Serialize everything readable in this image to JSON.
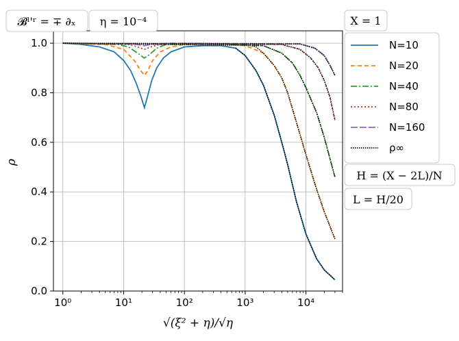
{
  "chart_data": {
    "type": "line",
    "title": "",
    "xlabel": "√(ξ² + η)/√η",
    "ylabel": "ρ",
    "xscale": "log",
    "xlim": [
      0.7,
      40000
    ],
    "ylim": [
      0.0,
      1.05
    ],
    "grid": true,
    "legend_position": "right",
    "x_ticks": [
      {
        "value": 1,
        "label": "10⁰"
      },
      {
        "value": 10,
        "label": "10¹"
      },
      {
        "value": 100,
        "label": "10²"
      },
      {
        "value": 1000,
        "label": "10³"
      },
      {
        "value": 10000,
        "label": "10⁴"
      }
    ],
    "y_ticks": [
      {
        "value": 0.0,
        "label": "0.0"
      },
      {
        "value": 0.2,
        "label": "0.2"
      },
      {
        "value": 0.4,
        "label": "0.4"
      },
      {
        "value": 0.6,
        "label": "0.6"
      },
      {
        "value": 0.8,
        "label": "0.8"
      },
      {
        "value": 1.0,
        "label": "1.0"
      }
    ],
    "annotations": {
      "top_left_1": "𝓑ˡ'ʳ = ∓ ∂ₓ",
      "top_left_2": "η = 10⁻⁴",
      "top_right": "X = 1",
      "right_1": "H = (X − 2L)/N",
      "right_2": "L = H/20"
    },
    "series": [
      {
        "name": "N=10",
        "color": "#1f77b4",
        "dash": "solid",
        "points": [
          [
            1,
            1.0
          ],
          [
            2,
            0.995
          ],
          [
            4,
            0.985
          ],
          [
            7,
            0.965
          ],
          [
            10,
            0.93
          ],
          [
            13,
            0.89
          ],
          [
            16,
            0.84
          ],
          [
            19,
            0.79
          ],
          [
            22,
            0.74
          ],
          [
            25,
            0.79
          ],
          [
            29,
            0.85
          ],
          [
            35,
            0.9
          ],
          [
            45,
            0.94
          ],
          [
            60,
            0.965
          ],
          [
            100,
            0.985
          ],
          [
            200,
            0.99
          ],
          [
            400,
            0.99
          ],
          [
            700,
            0.98
          ],
          [
            1000,
            0.95
          ],
          [
            1500,
            0.89
          ],
          [
            2000,
            0.83
          ],
          [
            3000,
            0.71
          ],
          [
            4000,
            0.6
          ],
          [
            5000,
            0.51
          ],
          [
            7000,
            0.36
          ],
          [
            10000,
            0.23
          ],
          [
            15000,
            0.13
          ],
          [
            20000,
            0.085
          ],
          [
            30000,
            0.045
          ]
        ]
      },
      {
        "name": "N=20",
        "color": "#ff7f0e",
        "dash": "6,4",
        "points": [
          [
            1,
            1.0
          ],
          [
            5,
            0.995
          ],
          [
            10,
            0.975
          ],
          [
            15,
            0.93
          ],
          [
            19,
            0.89
          ],
          [
            22,
            0.87
          ],
          [
            25,
            0.89
          ],
          [
            30,
            0.93
          ],
          [
            40,
            0.965
          ],
          [
            60,
            0.985
          ],
          [
            100,
            0.995
          ],
          [
            500,
            0.997
          ],
          [
            1000,
            0.99
          ],
          [
            2000,
            0.96
          ],
          [
            3000,
            0.91
          ],
          [
            4000,
            0.86
          ],
          [
            5000,
            0.8
          ],
          [
            7000,
            0.68
          ],
          [
            10000,
            0.55
          ],
          [
            15000,
            0.41
          ],
          [
            20000,
            0.32
          ],
          [
            30000,
            0.21
          ]
        ]
      },
      {
        "name": "N=40",
        "color": "#2ca02c",
        "dash": "9,3,2,3",
        "points": [
          [
            1,
            1.0
          ],
          [
            8,
            0.995
          ],
          [
            12,
            0.985
          ],
          [
            17,
            0.96
          ],
          [
            22,
            0.94
          ],
          [
            27,
            0.955
          ],
          [
            35,
            0.98
          ],
          [
            50,
            0.995
          ],
          [
            200,
            1.0
          ],
          [
            2000,
            0.99
          ],
          [
            4000,
            0.96
          ],
          [
            6000,
            0.92
          ],
          [
            8000,
            0.87
          ],
          [
            10000,
            0.82
          ],
          [
            15000,
            0.72
          ],
          [
            20000,
            0.62
          ],
          [
            30000,
            0.46
          ]
        ]
      },
      {
        "name": "N=80",
        "color": "#d62728",
        "dash": "2,3",
        "points": [
          [
            1,
            1.0
          ],
          [
            12,
            0.995
          ],
          [
            17,
            0.985
          ],
          [
            22,
            0.975
          ],
          [
            28,
            0.985
          ],
          [
            40,
            0.995
          ],
          [
            100,
            1.0
          ],
          [
            4000,
            0.995
          ],
          [
            8000,
            0.975
          ],
          [
            12000,
            0.94
          ],
          [
            16000,
            0.9
          ],
          [
            20000,
            0.85
          ],
          [
            25000,
            0.78
          ],
          [
            30000,
            0.69
          ]
        ]
      },
      {
        "name": "N=160",
        "color": "#9467bd",
        "dash": "10,3",
        "points": [
          [
            1,
            1.0
          ],
          [
            15,
            0.997
          ],
          [
            22,
            0.99
          ],
          [
            30,
            0.997
          ],
          [
            60,
            1.0
          ],
          [
            8000,
            0.997
          ],
          [
            14000,
            0.98
          ],
          [
            20000,
            0.95
          ],
          [
            25000,
            0.91
          ],
          [
            30000,
            0.87
          ]
        ]
      },
      {
        "name": "ρ∞",
        "color": "#000000",
        "dash": "1.5,1.5",
        "segments": [
          [
            [
              1,
              1.0
            ],
            [
              1000,
              0.995
            ],
            [
              1500,
              0.985
            ],
            [
              2000,
              0.96
            ],
            [
              3000,
              0.91
            ],
            [
              4000,
              0.86
            ],
            [
              5000,
              0.8
            ],
            [
              7000,
              0.68
            ],
            [
              10000,
              0.55
            ],
            [
              15000,
              0.41
            ],
            [
              20000,
              0.32
            ],
            [
              30000,
              0.21
            ]
          ],
          [
            [
              1,
              1.0
            ],
            [
              2000,
              0.99
            ],
            [
              4000,
              0.96
            ],
            [
              6000,
              0.92
            ],
            [
              8000,
              0.87
            ],
            [
              10000,
              0.82
            ],
            [
              15000,
              0.72
            ],
            [
              20000,
              0.62
            ],
            [
              30000,
              0.46
            ]
          ],
          [
            [
              1,
              1.0
            ],
            [
              4000,
              0.995
            ],
            [
              8000,
              0.975
            ],
            [
              12000,
              0.94
            ],
            [
              16000,
              0.9
            ],
            [
              20000,
              0.85
            ],
            [
              25000,
              0.78
            ],
            [
              30000,
              0.69
            ]
          ],
          [
            [
              1,
              1.0
            ],
            [
              8000,
              0.997
            ],
            [
              14000,
              0.98
            ],
            [
              20000,
              0.95
            ],
            [
              25000,
              0.91
            ],
            [
              30000,
              0.87
            ]
          ],
          [
            [
              700,
              0.98
            ],
            [
              1000,
              0.95
            ],
            [
              1500,
              0.89
            ],
            [
              2000,
              0.83
            ],
            [
              3000,
              0.71
            ],
            [
              4000,
              0.6
            ],
            [
              5000,
              0.51
            ],
            [
              7000,
              0.36
            ],
            [
              10000,
              0.23
            ],
            [
              15000,
              0.13
            ],
            [
              20000,
              0.085
            ],
            [
              30000,
              0.045
            ]
          ]
        ]
      }
    ]
  }
}
